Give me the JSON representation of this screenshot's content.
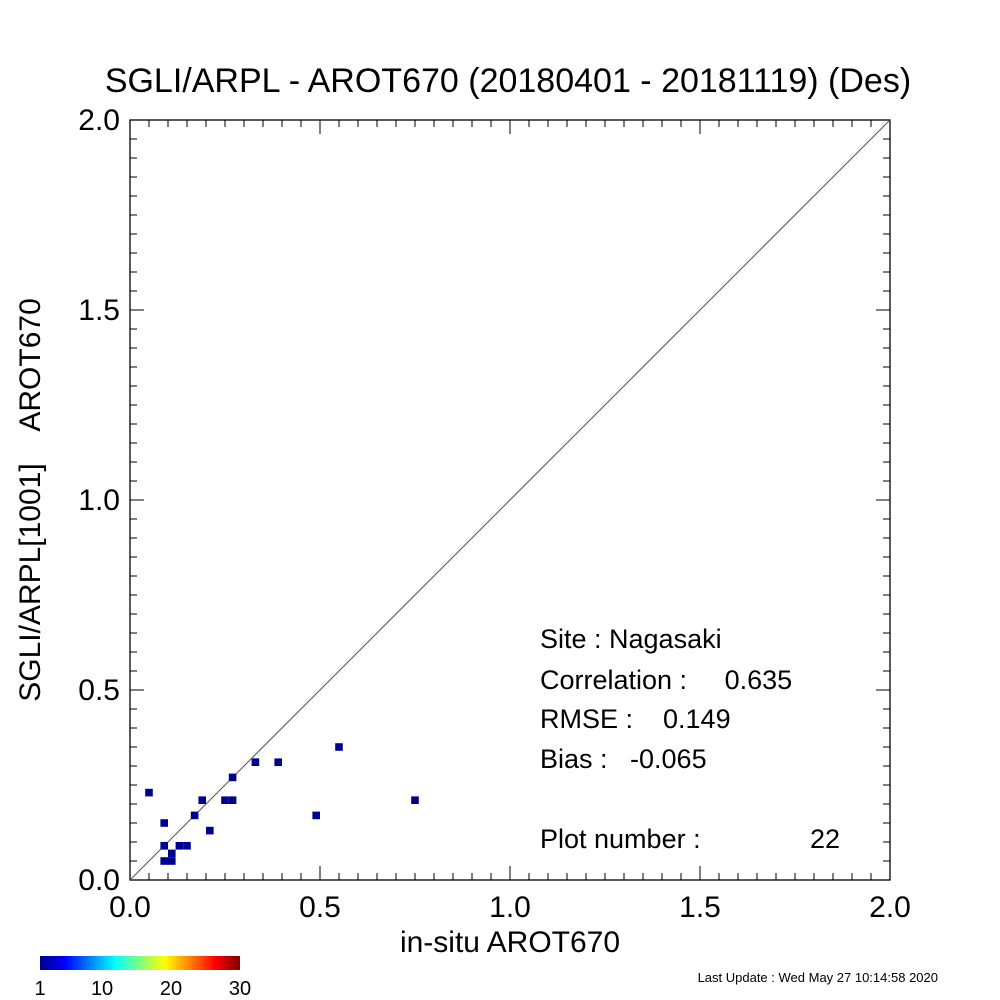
{
  "chart_data": {
    "type": "scatter",
    "title": "SGLI/ARPL - AROT670 (20180401 - 20181119) (Des)",
    "xlabel": "in-situ AROT670",
    "ylabel": "SGLI/ARPL[1001]    AROT670",
    "xlim": [
      0.0,
      2.0
    ],
    "ylim": [
      0.0,
      2.0
    ],
    "xticks": [
      "0.0",
      "0.5",
      "1.0",
      "1.5",
      "2.0"
    ],
    "yticks": [
      "0.0",
      "0.5",
      "1.0",
      "1.5",
      "2.0"
    ],
    "one_to_one_line": true,
    "grid": false,
    "point_color": "#00008f",
    "points": [
      {
        "x": 0.05,
        "y": 0.23
      },
      {
        "x": 0.09,
        "y": 0.15
      },
      {
        "x": 0.09,
        "y": 0.09
      },
      {
        "x": 0.09,
        "y": 0.05
      },
      {
        "x": 0.11,
        "y": 0.05
      },
      {
        "x": 0.11,
        "y": 0.07
      },
      {
        "x": 0.13,
        "y": 0.09
      },
      {
        "x": 0.15,
        "y": 0.09
      },
      {
        "x": 0.17,
        "y": 0.17
      },
      {
        "x": 0.19,
        "y": 0.21
      },
      {
        "x": 0.21,
        "y": 0.13
      },
      {
        "x": 0.25,
        "y": 0.21
      },
      {
        "x": 0.27,
        "y": 0.21
      },
      {
        "x": 0.27,
        "y": 0.27
      },
      {
        "x": 0.33,
        "y": 0.31
      },
      {
        "x": 0.39,
        "y": 0.31
      },
      {
        "x": 0.49,
        "y": 0.17
      },
      {
        "x": 0.55,
        "y": 0.35
      },
      {
        "x": 0.75,
        "y": 0.21
      }
    ],
    "stats": {
      "site_line": "Site : Nagasaki",
      "correlation_line": "Correlation :     0.635",
      "rmse_line": "RMSE :    0.149",
      "bias_line": "Bias :   -0.065",
      "plot_number_label": "Plot number :",
      "plot_number_value": "22"
    },
    "colorbar": {
      "colors": [
        "#00008f",
        "#0000ff",
        "#0080ff",
        "#00ffff",
        "#80ff80",
        "#ffff00",
        "#ff8000",
        "#ff0000",
        "#800000"
      ],
      "tick_labels": [
        "1",
        "10",
        "20",
        "30"
      ]
    },
    "footer": "Last Update : Wed May 27 10:14:58 2020"
  }
}
